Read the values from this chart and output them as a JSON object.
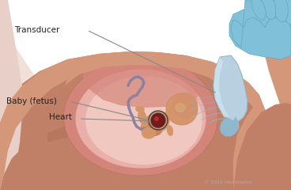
{
  "bg_color": "#ffffff",
  "skin_light": "#d4977a",
  "skin_mid": "#c08068",
  "skin_dark": "#a86850",
  "skin_shadow": "#b07060",
  "uterus_wall": "#d4857a",
  "uterus_inner": "#f0c8c0",
  "uterus_lining": "#e8b0a8",
  "fetus_skin": "#d4956a",
  "fetus_skin2": "#c8855e",
  "cord_color": "#9080a0",
  "heart_fill": "#7a1818",
  "heart_ring": "#222222",
  "transducer_main": "#b8d0e0",
  "transducer_dark": "#90b8cc",
  "transducer_light": "#d0e8f0",
  "glove_main": "#80c0d8",
  "glove_dark": "#60a8c0",
  "glove_light": "#a0d0e8",
  "wave_color": "#88b8c8",
  "label_color": "#222222",
  "line_color": "#888888",
  "copyright_text": "© 2019 Healthwise",
  "label_transducer": "Transducer",
  "label_baby": "Baby (fetus)",
  "label_heart": "Heart"
}
